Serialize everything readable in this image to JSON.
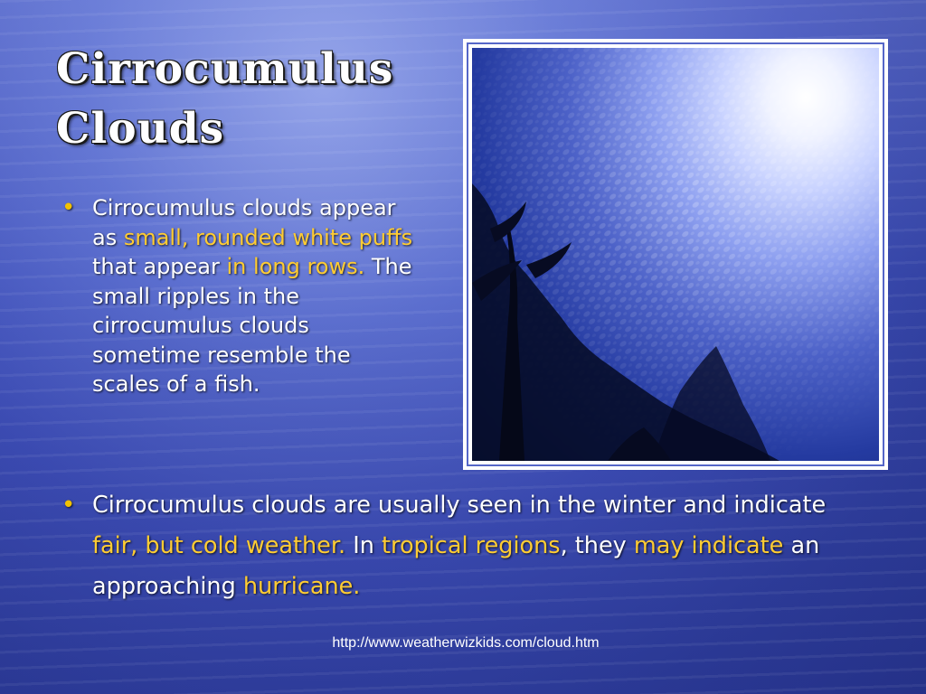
{
  "slide": {
    "title_line1": "Cirrocumulus",
    "title_line2": "Clouds",
    "bullet1": {
      "t1": "Cirrocumulus clouds appear as ",
      "h1": "small, rounded white puffs",
      "t2": " that appear ",
      "h2": "in long rows.",
      "t3": " The small ripples in the cirrocumulus clouds sometime resemble the scales of a fish."
    },
    "bullet2": {
      "t1": "Cirrocumulus clouds are usually seen in the winter and indicate ",
      "h1": "fair, but cold weather.",
      "t2": " In ",
      "h2": "tropical regions",
      "t3": ", they ",
      "h3": "may indicate",
      "t4": " an approaching ",
      "h4": "hurricane."
    },
    "source": "http://www.weatherwizkids.com/cloud.htm",
    "bullet_symbol": "•"
  },
  "colors": {
    "highlight": "#ffcc33",
    "bullet": "#f2c200",
    "text": "#ffffff",
    "background": "#3f4fb8"
  }
}
